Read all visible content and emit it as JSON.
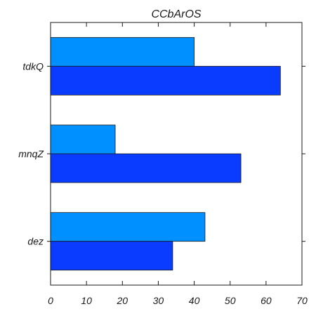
{
  "chart_data": {
    "type": "bar",
    "orientation": "horizontal",
    "title": "CCbArOS",
    "xlabel": "",
    "ylabel": "",
    "categories": [
      "tdkQ",
      "mnqZ",
      "dez"
    ],
    "series": [
      {
        "values": [
          40,
          18,
          43
        ],
        "color": "#0090ff"
      },
      {
        "values": [
          64,
          53,
          34
        ],
        "color": "#0a3cff"
      }
    ],
    "xlim": [
      0,
      70
    ],
    "xticks": [
      0,
      10,
      20,
      30,
      40,
      50,
      60,
      70
    ],
    "grid": false,
    "legend": "none"
  }
}
